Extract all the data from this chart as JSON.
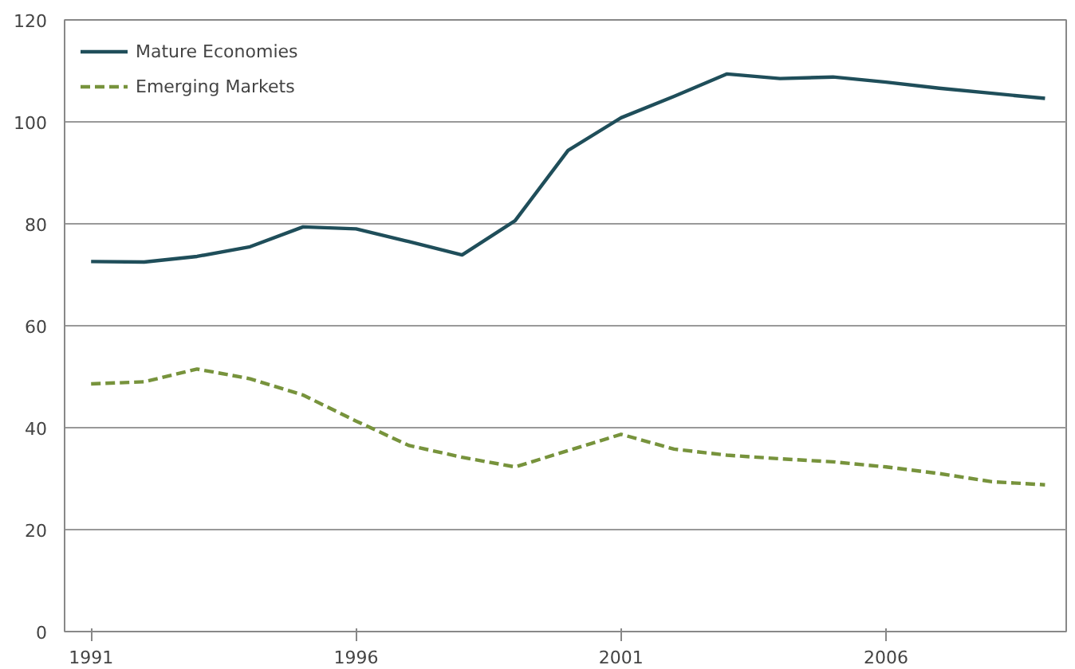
{
  "chart_data": {
    "type": "line",
    "x": [
      1991,
      1992,
      1993,
      1994,
      1995,
      1996,
      1997,
      1998,
      1999,
      2000,
      2001,
      2002,
      2003,
      2004,
      2005,
      2006,
      2007,
      2008,
      2009
    ],
    "series": [
      {
        "name": "Mature Economies",
        "color": "#1f4e5a",
        "line_style": "solid",
        "values": [
          72.6,
          72.5,
          73.6,
          75.5,
          79.4,
          79,
          76.5,
          73.9,
          80.6,
          94.4,
          100.8,
          105,
          109.4,
          108.5,
          108.8,
          107.8,
          106.6,
          105.6,
          104.6
        ]
      },
      {
        "name": "Emerging Markets",
        "color": "#77933c",
        "line_style": "dashed",
        "values": [
          48.6,
          49,
          51.5,
          49.6,
          46.4,
          41.3,
          36.5,
          34.2,
          32.3,
          35.5,
          38.7,
          35.8,
          34.6,
          33.9,
          33.3,
          32.3,
          31,
          29.4,
          28.8
        ]
      }
    ],
    "xlim": [
      1990.5,
      2009.4
    ],
    "xticks": [
      1991,
      1996,
      2001,
      2006
    ],
    "ylim": [
      0,
      120
    ],
    "yticks": [
      0,
      20,
      40,
      60,
      80,
      100,
      120
    ],
    "grid": "y",
    "legend": "top left"
  }
}
